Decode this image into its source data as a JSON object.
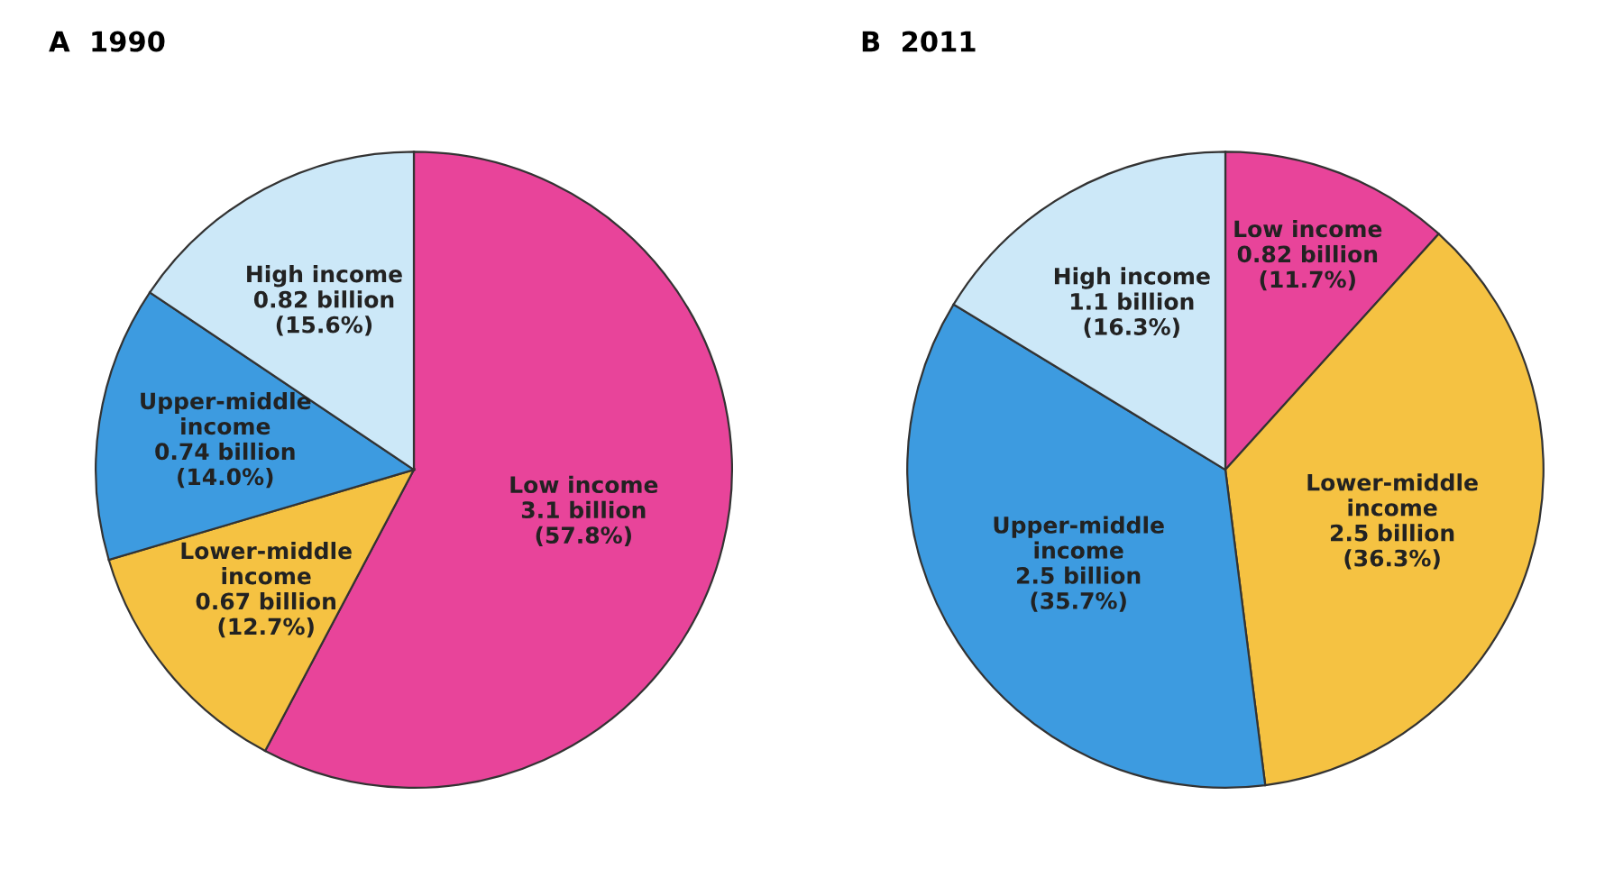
{
  "chart_data": [
    {
      "type": "pie",
      "title": "A  1990",
      "categories": [
        "Low income",
        "Lower-middle\nincome",
        "Upper-middle\nincome",
        "High income"
      ],
      "values": [
        57.8,
        12.7,
        14.0,
        15.6
      ],
      "value_labels": [
        "3.1 billion\n(57.8%)",
        "0.67 billion\n(12.7%)",
        "0.74 billion\n(14.0%)",
        "0.82 billion\n(15.6%)"
      ],
      "colors": [
        "#e8449a",
        "#f5c242",
        "#3d9be0",
        "#cce8f8"
      ]
    },
    {
      "type": "pie",
      "title": "B  2011",
      "categories": [
        "Low income",
        "Lower-middle\nincome",
        "Upper-middle\nincome",
        "High income"
      ],
      "values": [
        11.7,
        36.3,
        35.7,
        16.3
      ],
      "value_labels": [
        "0.82 billion\n(11.7%)",
        "2.5 billion\n(36.3%)",
        "2.5 billion\n(35.7%)",
        "1.1 billion\n(16.3%)"
      ],
      "colors": [
        "#e8449a",
        "#f5c242",
        "#3d9be0",
        "#cce8f8"
      ]
    }
  ]
}
